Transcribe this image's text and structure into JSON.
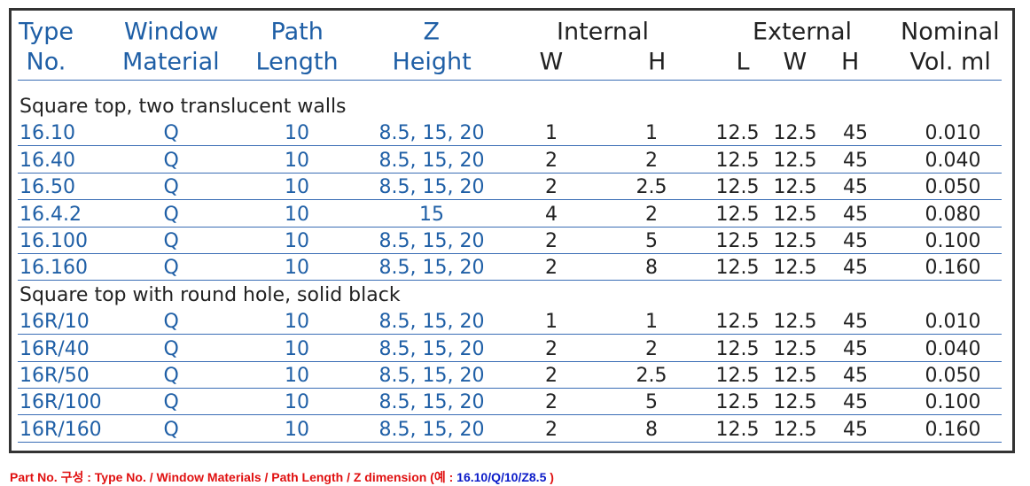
{
  "header": {
    "type_no": [
      "Type",
      "No."
    ],
    "window_material": [
      "Window",
      "Material"
    ],
    "path_length": [
      "Path",
      "Length"
    ],
    "z_height": [
      "Z",
      "Height"
    ],
    "internal": {
      "title": "Internal",
      "sub": [
        "W",
        "H"
      ]
    },
    "external": {
      "title": "External",
      "sub": [
        "L",
        "W",
        "H"
      ]
    },
    "nominal": [
      "Nominal",
      "Vol. ml"
    ]
  },
  "sections": [
    {
      "title": "Square top, two translucent walls",
      "rows": [
        [
          "16.10",
          "Q",
          "10",
          "8.5, 15, 20",
          "1",
          "1",
          "12.5",
          "12.5",
          "45",
          "0.010"
        ],
        [
          "16.40",
          "Q",
          "10",
          "8.5, 15, 20",
          "2",
          "2",
          "12.5",
          "12.5",
          "45",
          "0.040"
        ],
        [
          "16.50",
          "Q",
          "10",
          "8.5, 15, 20",
          "2",
          "2.5",
          "12.5",
          "12.5",
          "45",
          "0.050"
        ],
        [
          "16.4.2",
          "Q",
          "10",
          "15",
          "4",
          "2",
          "12.5",
          "12.5",
          "45",
          "0.080"
        ],
        [
          "16.100",
          "Q",
          "10",
          "8.5, 15, 20",
          "2",
          "5",
          "12.5",
          "12.5",
          "45",
          "0.100"
        ],
        [
          "16.160",
          "Q",
          "10",
          "8.5, 15, 20",
          "2",
          "8",
          "12.5",
          "12.5",
          "45",
          "0.160"
        ]
      ]
    },
    {
      "title": "Square top with round hole, solid black",
      "rows": [
        [
          "16R/10",
          "Q",
          "10",
          "8.5, 15, 20",
          "1",
          "1",
          "12.5",
          "12.5",
          "45",
          "0.010"
        ],
        [
          "16R/40",
          "Q",
          "10",
          "8.5, 15, 20",
          "2",
          "2",
          "12.5",
          "12.5",
          "45",
          "0.040"
        ],
        [
          "16R/50",
          "Q",
          "10",
          "8.5, 15, 20",
          "2",
          "2.5",
          "12.5",
          "12.5",
          "45",
          "0.050"
        ],
        [
          "16R/100",
          "Q",
          "10",
          "8.5, 15, 20",
          "2",
          "5",
          "12.5",
          "12.5",
          "45",
          "0.100"
        ],
        [
          "16R/160",
          "Q",
          "10",
          "8.5, 15, 20",
          "2",
          "8",
          "12.5",
          "12.5",
          "45",
          "0.160"
        ]
      ]
    }
  ],
  "note": [
    "Part No. 구성 : Type No. / Window Materials / Path Length / Z dimension (예 : ",
    "16.10/Q/10/Z8.5",
    " )"
  ]
}
